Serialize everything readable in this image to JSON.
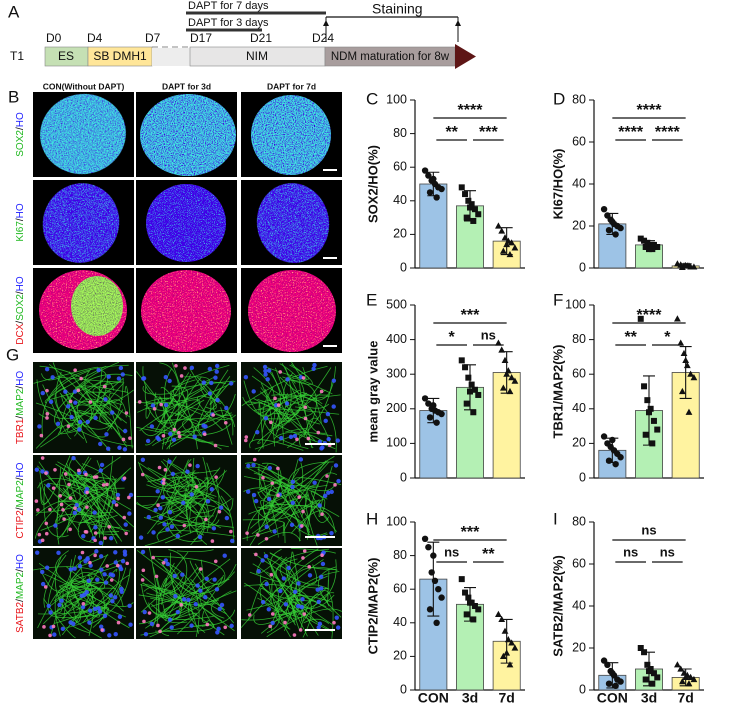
{
  "timeline": {
    "panel": "A",
    "row_label": "T1",
    "days": [
      "D0",
      "D4",
      "D7",
      "D17",
      "D21",
      "D24"
    ],
    "stages": [
      "ES",
      "SB DMH1",
      "NIM",
      "NDM maturation for 8w"
    ],
    "treatments": [
      "DAPT for 7 days",
      "DAPT for 3 days"
    ],
    "staining": "Staining"
  },
  "organoid_panel": {
    "panel": "B",
    "columns": [
      "CON(Without DAPT)",
      "DAPT for 3d",
      "DAPT for 7d"
    ],
    "rows": [
      [
        {
          "text": "SOX2",
          "color": "#1fb81f"
        },
        {
          "text": "/",
          "color": "#000000"
        },
        {
          "text": "HO",
          "color": "#1a1aff"
        }
      ],
      [
        {
          "text": "KI67",
          "color": "#1fb81f"
        },
        {
          "text": "/",
          "color": "#000000"
        },
        {
          "text": "HO",
          "color": "#1a1aff"
        }
      ],
      [
        {
          "text": "DCX",
          "color": "#e8141a"
        },
        {
          "text": "/",
          "color": "#000000"
        },
        {
          "text": "SOX2",
          "color": "#1fb81f"
        },
        {
          "text": "/",
          "color": "#000000"
        },
        {
          "text": "HO",
          "color": "#1a1aff"
        }
      ]
    ]
  },
  "neuron_panel": {
    "panel": "G",
    "rows": [
      [
        {
          "text": "TBR1",
          "color": "#e8141a"
        },
        {
          "text": "/",
          "color": "#000000"
        },
        {
          "text": "MAP2",
          "color": "#1fb81f"
        },
        {
          "text": "/",
          "color": "#000000"
        },
        {
          "text": "HO",
          "color": "#1a1aff"
        }
      ],
      [
        {
          "text": "CTIP2",
          "color": "#e8141a"
        },
        {
          "text": "/",
          "color": "#000000"
        },
        {
          "text": "MAP2",
          "color": "#1fb81f"
        },
        {
          "text": "/",
          "color": "#000000"
        },
        {
          "text": "HO",
          "color": "#1a1aff"
        }
      ],
      [
        {
          "text": "SATB2",
          "color": "#e8141a"
        },
        {
          "text": "/",
          "color": "#000000"
        },
        {
          "text": "MAP2",
          "color": "#1fb81f"
        },
        {
          "text": "/",
          "color": "#000000"
        },
        {
          "text": "HO",
          "color": "#1a1aff"
        }
      ]
    ]
  },
  "chart_data": [
    {
      "type": "bar",
      "panel": "C",
      "ylabel": "SOX2/HO(%)",
      "categories": [
        null,
        null,
        null
      ],
      "values": [
        50,
        37,
        16
      ],
      "errors": [
        7,
        9,
        8
      ],
      "points": [
        [
          58,
          55,
          52,
          50,
          48,
          47,
          45,
          42,
          53
        ],
        [
          48,
          44,
          40,
          38,
          35,
          32,
          30,
          28,
          36
        ],
        [
          25,
          22,
          18,
          16,
          15,
          12,
          10,
          8,
          14
        ]
      ],
      "colors": [
        "#9dc3e6",
        "#b4f0b4",
        "#fff3a0"
      ],
      "markers": [
        "circle",
        "square",
        "triangle"
      ],
      "ylim": [
        0,
        100
      ],
      "yticks": [
        0,
        20,
        40,
        60,
        80,
        100
      ],
      "comparisons": [
        {
          "pair": [
            0,
            2
          ],
          "label": "****"
        },
        {
          "pair": [
            0,
            1
          ],
          "label": "**"
        },
        {
          "pair": [
            1,
            2
          ],
          "label": "***"
        }
      ]
    },
    {
      "type": "bar",
      "panel": "D",
      "ylabel": "KI67/HO(%)",
      "categories": [
        null,
        null,
        null
      ],
      "values": [
        21,
        11,
        1
      ],
      "errors": [
        5,
        2,
        1
      ],
      "points": [
        [
          28,
          25,
          23,
          21,
          20,
          19,
          18,
          16,
          22
        ],
        [
          14,
          13,
          12,
          11,
          11,
          10,
          10,
          9,
          9
        ],
        [
          2,
          1.5,
          1,
          1,
          0.5,
          0.5,
          0.3,
          1,
          1.2
        ]
      ],
      "colors": [
        "#9dc3e6",
        "#b4f0b4",
        "#fff3a0"
      ],
      "markers": [
        "circle",
        "square",
        "triangle"
      ],
      "ylim": [
        0,
        80
      ],
      "yticks": [
        0,
        20,
        40,
        60,
        80
      ],
      "comparisons": [
        {
          "pair": [
            0,
            2
          ],
          "label": "****"
        },
        {
          "pair": [
            0,
            1
          ],
          "label": "****"
        },
        {
          "pair": [
            1,
            2
          ],
          "label": "****"
        }
      ]
    },
    {
      "type": "bar",
      "panel": "E",
      "ylabel": "mean gray value",
      "categories": [
        null,
        null,
        null
      ],
      "values": [
        195,
        262,
        305
      ],
      "errors": [
        35,
        65,
        60
      ],
      "points": [
        [
          230,
          215,
          200,
          195,
          190,
          185,
          175,
          160,
          210
        ],
        [
          340,
          320,
          290,
          270,
          255,
          240,
          215,
          190,
          250
        ],
        [
          390,
          370,
          340,
          310,
          290,
          280,
          260,
          250,
          300
        ]
      ],
      "colors": [
        "#9dc3e6",
        "#b4f0b4",
        "#fff3a0"
      ],
      "markers": [
        "circle",
        "square",
        "triangle"
      ],
      "ylim": [
        0,
        500
      ],
      "yticks": [
        0,
        100,
        200,
        300,
        400,
        500
      ],
      "comparisons": [
        {
          "pair": [
            0,
            2
          ],
          "label": "***"
        },
        {
          "pair": [
            0,
            1
          ],
          "label": "*"
        },
        {
          "pair": [
            1,
            2
          ],
          "label": "ns"
        }
      ]
    },
    {
      "type": "bar",
      "panel": "F",
      "ylabel": "TBR1/MAP2(%)",
      "categories": [
        null,
        null,
        null
      ],
      "values": [
        16,
        39,
        61
      ],
      "errors": [
        7,
        20,
        15
      ],
      "points": [
        [
          24,
          20,
          18,
          16,
          14,
          12,
          10,
          8,
          22
        ],
        [
          92,
          53,
          45,
          40,
          33,
          28,
          25,
          20,
          38
        ],
        [
          92,
          78,
          72,
          65,
          60,
          58,
          50,
          38,
          68
        ]
      ],
      "colors": [
        "#9dc3e6",
        "#b4f0b4",
        "#fff3a0"
      ],
      "markers": [
        "circle",
        "square",
        "triangle"
      ],
      "ylim": [
        0,
        100
      ],
      "yticks": [
        0,
        20,
        40,
        60,
        80,
        100
      ],
      "comparisons": [
        {
          "pair": [
            0,
            2
          ],
          "label": "****"
        },
        {
          "pair": [
            0,
            1
          ],
          "label": "**"
        },
        {
          "pair": [
            1,
            2
          ],
          "label": "*"
        }
      ]
    },
    {
      "type": "bar",
      "panel": "H",
      "ylabel": "CTIP2/MAP2(%)",
      "categories": [
        "CON",
        "3d",
        "7d"
      ],
      "values": [
        66,
        51,
        29
      ],
      "errors": [
        22,
        10,
        13
      ],
      "points": [
        [
          90,
          85,
          70,
          65,
          60,
          55,
          48,
          40,
          80
        ],
        [
          66,
          58,
          55,
          52,
          50,
          48,
          45,
          42,
          52
        ],
        [
          45,
          42,
          35,
          30,
          28,
          25,
          20,
          15,
          22
        ]
      ],
      "colors": [
        "#9dc3e6",
        "#b4f0b4",
        "#fff3a0"
      ],
      "markers": [
        "circle",
        "square",
        "triangle"
      ],
      "ylim": [
        0,
        100
      ],
      "yticks": [
        0,
        20,
        40,
        60,
        80,
        100
      ],
      "comparisons": [
        {
          "pair": [
            0,
            2
          ],
          "label": "***"
        },
        {
          "pair": [
            0,
            1
          ],
          "label": "ns"
        },
        {
          "pair": [
            1,
            2
          ],
          "label": "**"
        }
      ]
    },
    {
      "type": "bar",
      "panel": "I",
      "ylabel": "SATB2/MAP2(%)",
      "categories": [
        "CON",
        "3d",
        "7d"
      ],
      "values": [
        7,
        10,
        6
      ],
      "errors": [
        6,
        8,
        4
      ],
      "points": [
        [
          14,
          12,
          9,
          7,
          5,
          4,
          3,
          2,
          8
        ],
        [
          20,
          18,
          12,
          10,
          8,
          6,
          5,
          3,
          9
        ],
        [
          12,
          10,
          8,
          7,
          6,
          5,
          4,
          3,
          6
        ]
      ],
      "colors": [
        "#9dc3e6",
        "#b4f0b4",
        "#fff3a0"
      ],
      "markers": [
        "circle",
        "square",
        "triangle"
      ],
      "ylim": [
        0,
        80
      ],
      "yticks": [
        0,
        20,
        40,
        60,
        80
      ],
      "comparisons": [
        {
          "pair": [
            0,
            2
          ],
          "label": "ns"
        },
        {
          "pair": [
            0,
            1
          ],
          "label": "ns"
        },
        {
          "pair": [
            1,
            2
          ],
          "label": "ns"
        }
      ]
    }
  ]
}
